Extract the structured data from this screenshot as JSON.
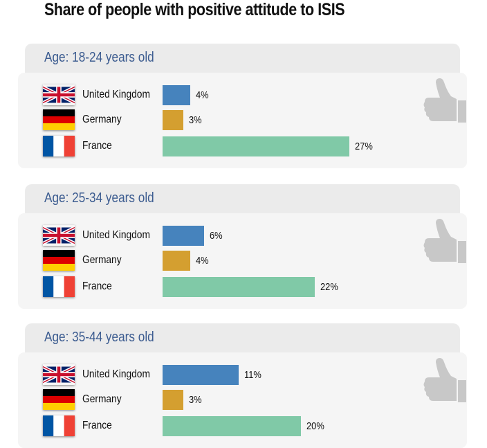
{
  "title": "Share of people with positive attitude to ISIS",
  "colors": {
    "United Kingdom": "#4683bd",
    "Germany": "#d49f30",
    "France": "#80c9a7",
    "tab_label": "#3c5c90",
    "thumb": "#c8c8c8"
  },
  "icons": [
    "flag-uk-icon",
    "flag-germany-icon",
    "flag-france-icon",
    "thumbs-up-icon"
  ],
  "chart_data": {
    "type": "bar",
    "orientation": "horizontal",
    "title": "Share of people with positive attitude to ISIS",
    "unit": "%",
    "categories": [
      "United Kingdom",
      "Germany",
      "France"
    ],
    "groups": [
      {
        "label": "Age: 18-24 years old",
        "values": [
          4,
          3,
          27
        ],
        "value_labels": [
          "4%",
          "3%",
          "27%"
        ]
      },
      {
        "label": "Age: 25-34 years old",
        "values": [
          6,
          4,
          22
        ],
        "value_labels": [
          "6%",
          "4%",
          "22%"
        ]
      },
      {
        "label": "Age: 35-44 years old",
        "values": [
          11,
          3,
          20
        ],
        "value_labels": [
          "11%",
          "3%",
          "20%"
        ]
      }
    ]
  }
}
